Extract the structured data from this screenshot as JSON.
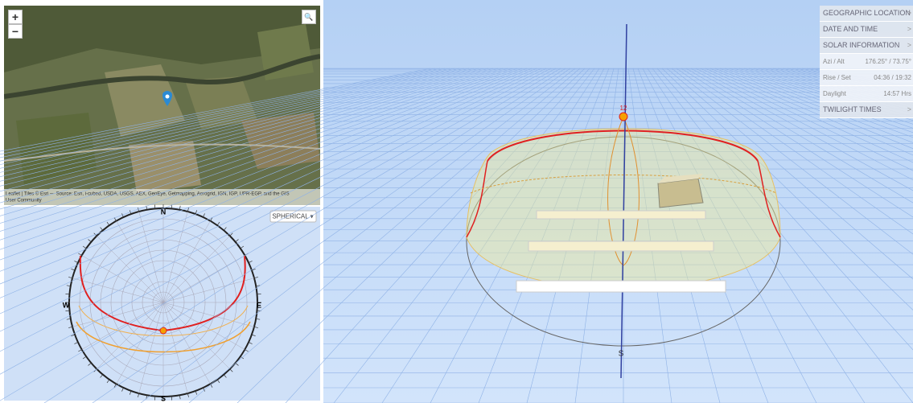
{
  "map": {
    "zoom_in": "+",
    "zoom_out": "−",
    "search": "🔍",
    "attribution": "Leaflet | Tiles © Esri — Source: Esri, i-cubed, USDA, USGS, AEX, GeoEye, Getmapping, Aerogrid, IGN, IGP, UPR-EGP, and the GIS",
    "attribution_2": "User Community"
  },
  "diagram": {
    "mode": "SPHERICAL ▾",
    "compass": {
      "n": "N",
      "e": "E",
      "s": "S",
      "w": "W"
    }
  },
  "view": {
    "south": "S",
    "noon": "12"
  },
  "panel": {
    "geographic_location": "GEOGRAPHIC LOCATION",
    "date_and_time": "DATE AND TIME",
    "solar_information": "SOLAR INFORMATION",
    "rows": [
      {
        "label": "Azi / Alt",
        "value": "176.25° / 73.75°"
      },
      {
        "label": "Rise / Set",
        "value": "04:36 / 19:32"
      },
      {
        "label": "Daylight",
        "value": "14:57 Hrs"
      }
    ],
    "twilight_times": "TWILIGHT TIMES"
  }
}
